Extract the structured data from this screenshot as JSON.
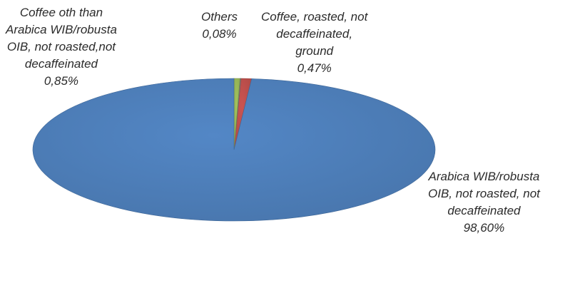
{
  "chart_data": {
    "type": "pie",
    "style": "3d",
    "title": "",
    "slices": [
      {
        "name_lines": [
          "Arabica WIB/robusta",
          "OIB, not roasted, not",
          "decaffeinated"
        ],
        "value": 98.6,
        "value_label": "98,60%",
        "color": "#4f81bd"
      },
      {
        "name_lines": [
          "Coffee oth than",
          "Arabica WIB/robusta",
          "OIB, not roasted,not",
          "decaffeinated"
        ],
        "value": 0.85,
        "value_label": "0,85%",
        "color": "#c0504d"
      },
      {
        "name_lines": [
          "Others"
        ],
        "value": 0.08,
        "value_label": "0,08%",
        "color": "#7f7f7f"
      },
      {
        "name_lines": [
          "Coffee, roasted, not",
          "decaffeinated,",
          "ground"
        ],
        "value": 0.47,
        "value_label": "0,47%",
        "color": "#9bbb59"
      }
    ]
  }
}
